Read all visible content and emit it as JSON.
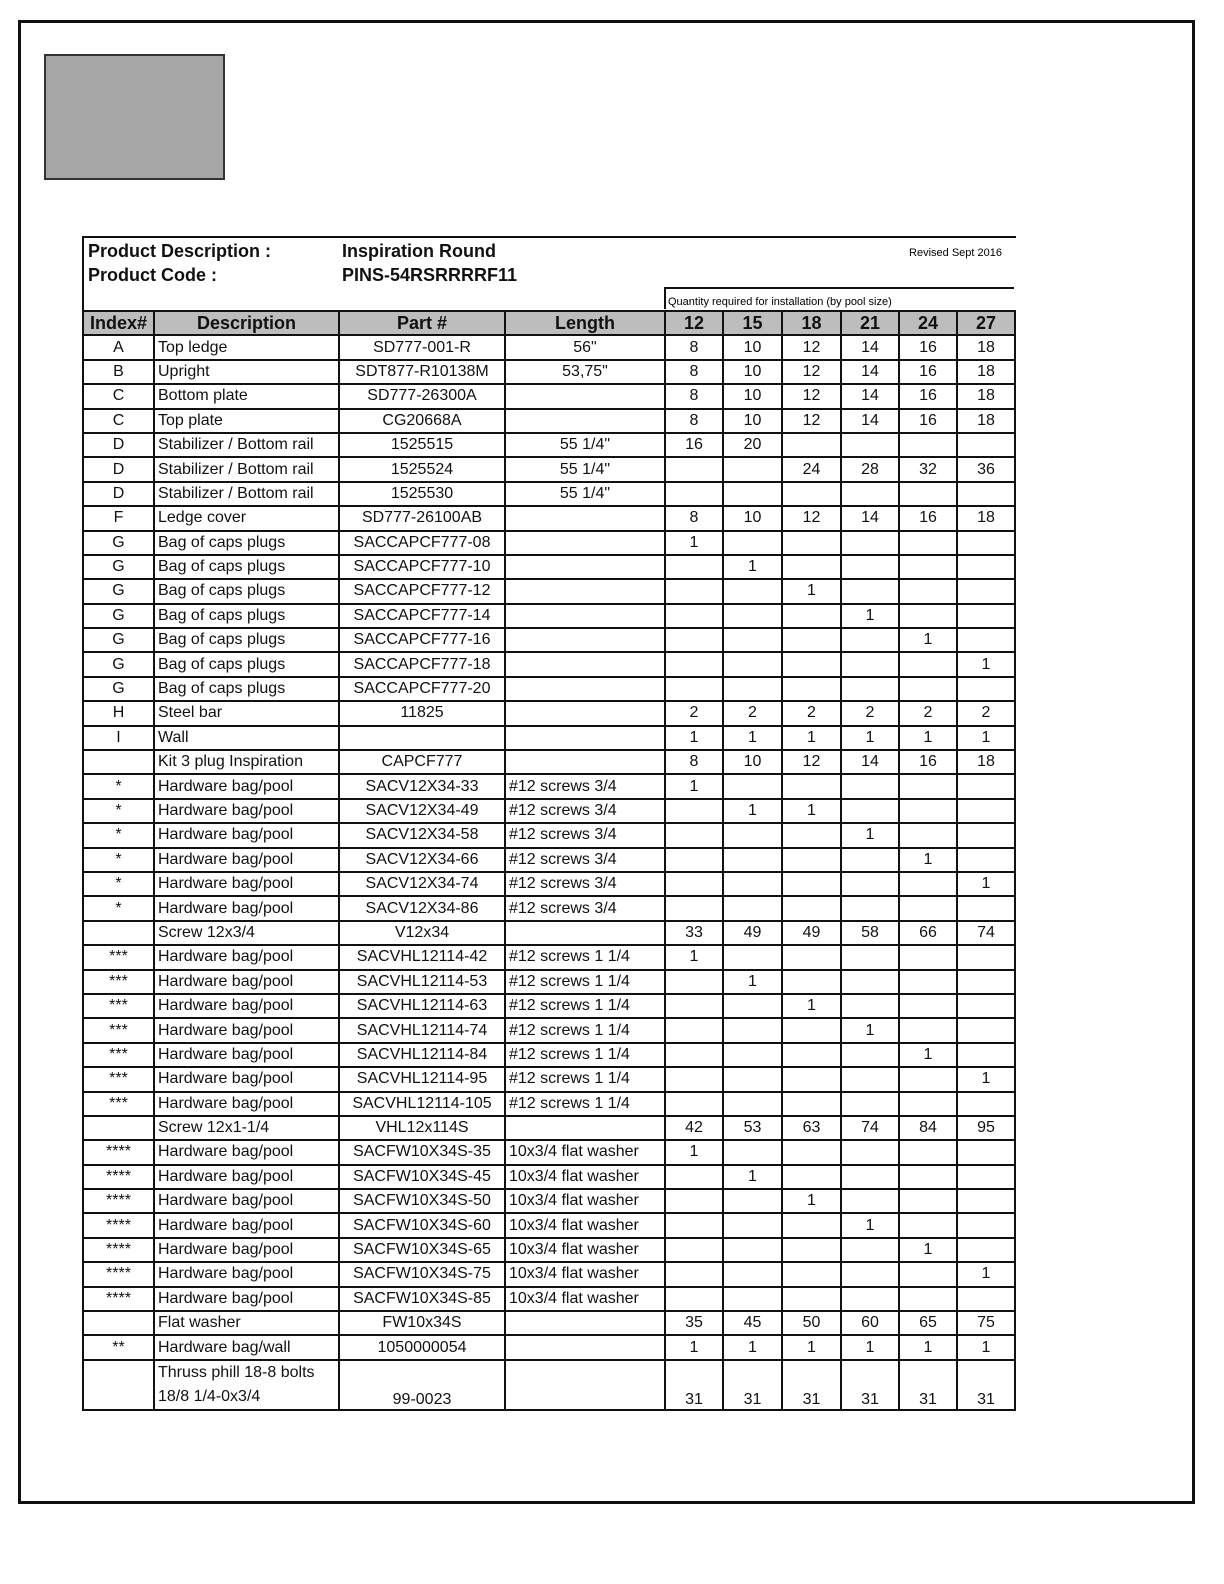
{
  "header": {
    "product_description_label": "Product Description :",
    "product_description": "Inspiration Round",
    "product_code_label": "Product Code :",
    "product_code": "PINS-54RSRRRRF11",
    "revised": "Revised Sept 2016",
    "quantity_caption": "Quantity required for installation (by pool size)"
  },
  "columns": [
    "Index#",
    "Description",
    "Part #",
    "Length",
    "12",
    "15",
    "18",
    "21",
    "24",
    "27"
  ],
  "rows": [
    [
      "A",
      "Top ledge",
      "SD777-001-R",
      "56\"",
      "8",
      "10",
      "12",
      "14",
      "16",
      "18"
    ],
    [
      "B",
      "Upright",
      "SDT877-R10138M",
      "53,75\"",
      "8",
      "10",
      "12",
      "14",
      "16",
      "18"
    ],
    [
      "C",
      "Bottom  plate",
      "SD777-26300A",
      "",
      "8",
      "10",
      "12",
      "14",
      "16",
      "18"
    ],
    [
      "C",
      "Top plate",
      "CG20668A",
      "",
      "8",
      "10",
      "12",
      "14",
      "16",
      "18"
    ],
    [
      "D",
      "Stabilizer / Bottom rail",
      "1525515",
      "55 1/4\"",
      "16",
      "20",
      "",
      "",
      "",
      ""
    ],
    [
      "D",
      "Stabilizer / Bottom rail",
      "1525524",
      "55 1/4\"",
      "",
      "",
      "24",
      "28",
      "32",
      "36"
    ],
    [
      "D",
      "Stabilizer / Bottom rail",
      "1525530",
      "55 1/4\"",
      "",
      "",
      "",
      "",
      "",
      ""
    ],
    [
      "F",
      "Ledge cover",
      "SD777-26100AB",
      "",
      "8",
      "10",
      "12",
      "14",
      "16",
      "18"
    ],
    [
      "G",
      "Bag of caps plugs",
      "SACCAPCF777-08",
      "",
      "1",
      "",
      "",
      "",
      "",
      ""
    ],
    [
      "G",
      "Bag of caps plugs",
      "SACCAPCF777-10",
      "",
      "",
      "1",
      "",
      "",
      "",
      ""
    ],
    [
      "G",
      "Bag of caps plugs",
      "SACCAPCF777-12",
      "",
      "",
      "",
      "1",
      "",
      "",
      ""
    ],
    [
      "G",
      "Bag of caps plugs",
      "SACCAPCF777-14",
      "",
      "",
      "",
      "",
      "1",
      "",
      ""
    ],
    [
      "G",
      "Bag of caps plugs",
      "SACCAPCF777-16",
      "",
      "",
      "",
      "",
      "",
      "1",
      ""
    ],
    [
      "G",
      "Bag of caps plugs",
      "SACCAPCF777-18",
      "",
      "",
      "",
      "",
      "",
      "",
      "1"
    ],
    [
      "G",
      "Bag of caps plugs",
      "SACCAPCF777-20",
      "",
      "",
      "",
      "",
      "",
      "",
      ""
    ],
    [
      "H",
      "Steel bar",
      "11825",
      "",
      "2",
      "2",
      "2",
      "2",
      "2",
      "2"
    ],
    [
      "I",
      "Wall",
      "",
      "",
      "1",
      "1",
      "1",
      "1",
      "1",
      "1"
    ],
    [
      "",
      "Kit 3 plug Inspiration",
      "CAPCF777",
      "",
      "8",
      "10",
      "12",
      "14",
      "16",
      "18"
    ],
    [
      "*",
      "Hardware bag/pool",
      "SACV12X34-33",
      "#12 screws 3/4",
      "1",
      "",
      "",
      "",
      "",
      ""
    ],
    [
      "*",
      "Hardware bag/pool",
      "SACV12X34-49",
      "#12 screws 3/4",
      "",
      "1",
      "1",
      "",
      "",
      ""
    ],
    [
      "*",
      "Hardware bag/pool",
      "SACV12X34-58",
      "#12 screws 3/4",
      "",
      "",
      "",
      "1",
      "",
      ""
    ],
    [
      "*",
      "Hardware bag/pool",
      "SACV12X34-66",
      "#12 screws 3/4",
      "",
      "",
      "",
      "",
      "1",
      ""
    ],
    [
      "*",
      "Hardware bag/pool",
      "SACV12X34-74",
      "#12 screws 3/4",
      "",
      "",
      "",
      "",
      "",
      "1"
    ],
    [
      "*",
      "Hardware bag/pool",
      "SACV12X34-86",
      "#12 screws 3/4",
      "",
      "",
      "",
      "",
      "",
      ""
    ],
    [
      "",
      "Screw 12x3/4",
      "V12x34",
      "",
      "33",
      "49",
      "49",
      "58",
      "66",
      "74"
    ],
    [
      "***",
      "Hardware bag/pool",
      "SACVHL12114-42",
      "#12 screws 1 1/4",
      "1",
      "",
      "",
      "",
      "",
      ""
    ],
    [
      "***",
      "Hardware bag/pool",
      "SACVHL12114-53",
      "#12 screws 1 1/4",
      "",
      "1",
      "",
      "",
      "",
      ""
    ],
    [
      "***",
      "Hardware bag/pool",
      "SACVHL12114-63",
      "#12 screws 1 1/4",
      "",
      "",
      "1",
      "",
      "",
      ""
    ],
    [
      "***",
      "Hardware bag/pool",
      "SACVHL12114-74",
      "#12 screws 1 1/4",
      "",
      "",
      "",
      "1",
      "",
      ""
    ],
    [
      "***",
      "Hardware bag/pool",
      "SACVHL12114-84",
      "#12 screws 1 1/4",
      "",
      "",
      "",
      "",
      "1",
      ""
    ],
    [
      "***",
      "Hardware bag/pool",
      "SACVHL12114-95",
      "#12 screws 1 1/4",
      "",
      "",
      "",
      "",
      "",
      "1"
    ],
    [
      "***",
      "Hardware bag/pool",
      "SACVHL12114-105",
      "#12 screws 1 1/4",
      "",
      "",
      "",
      "",
      "",
      ""
    ],
    [
      "",
      "Screw 12x1-1/4",
      "VHL12x114S",
      "",
      "42",
      "53",
      "63",
      "74",
      "84",
      "95"
    ],
    [
      "****",
      "Hardware bag/pool",
      "SACFW10X34S-35",
      "10x3/4 flat washer",
      "1",
      "",
      "",
      "",
      "",
      ""
    ],
    [
      "****",
      "Hardware bag/pool",
      "SACFW10X34S-45",
      "10x3/4 flat washer",
      "",
      "1",
      "",
      "",
      "",
      ""
    ],
    [
      "****",
      "Hardware bag/pool",
      "SACFW10X34S-50",
      "10x3/4 flat washer",
      "",
      "",
      "1",
      "",
      "",
      ""
    ],
    [
      "****",
      "Hardware bag/pool",
      "SACFW10X34S-60",
      "10x3/4 flat washer",
      "",
      "",
      "",
      "1",
      "",
      ""
    ],
    [
      "****",
      "Hardware bag/pool",
      "SACFW10X34S-65",
      "10x3/4 flat washer",
      "",
      "",
      "",
      "",
      "1",
      ""
    ],
    [
      "****",
      "Hardware bag/pool",
      "SACFW10X34S-75",
      "10x3/4 flat washer",
      "",
      "",
      "",
      "",
      "",
      "1"
    ],
    [
      "****",
      "Hardware bag/pool",
      "SACFW10X34S-85",
      "10x3/4 flat washer",
      "",
      "",
      "",
      "",
      "",
      ""
    ],
    [
      "",
      "Flat washer",
      "FW10x34S",
      "",
      "35",
      "45",
      "50",
      "60",
      "65",
      "75"
    ],
    [
      "**",
      "Hardware bag/wall",
      "1050000054",
      "",
      "1",
      "1",
      "1",
      "1",
      "1",
      "1"
    ]
  ],
  "last_row": {
    "index": "",
    "description_line1": "Thruss phill 18-8 bolts",
    "description_line2": "18/8 1/4-0x3/4",
    "part": "99-0023",
    "length": "",
    "q": [
      "31",
      "31",
      "31",
      "31",
      "31",
      "31"
    ]
  }
}
